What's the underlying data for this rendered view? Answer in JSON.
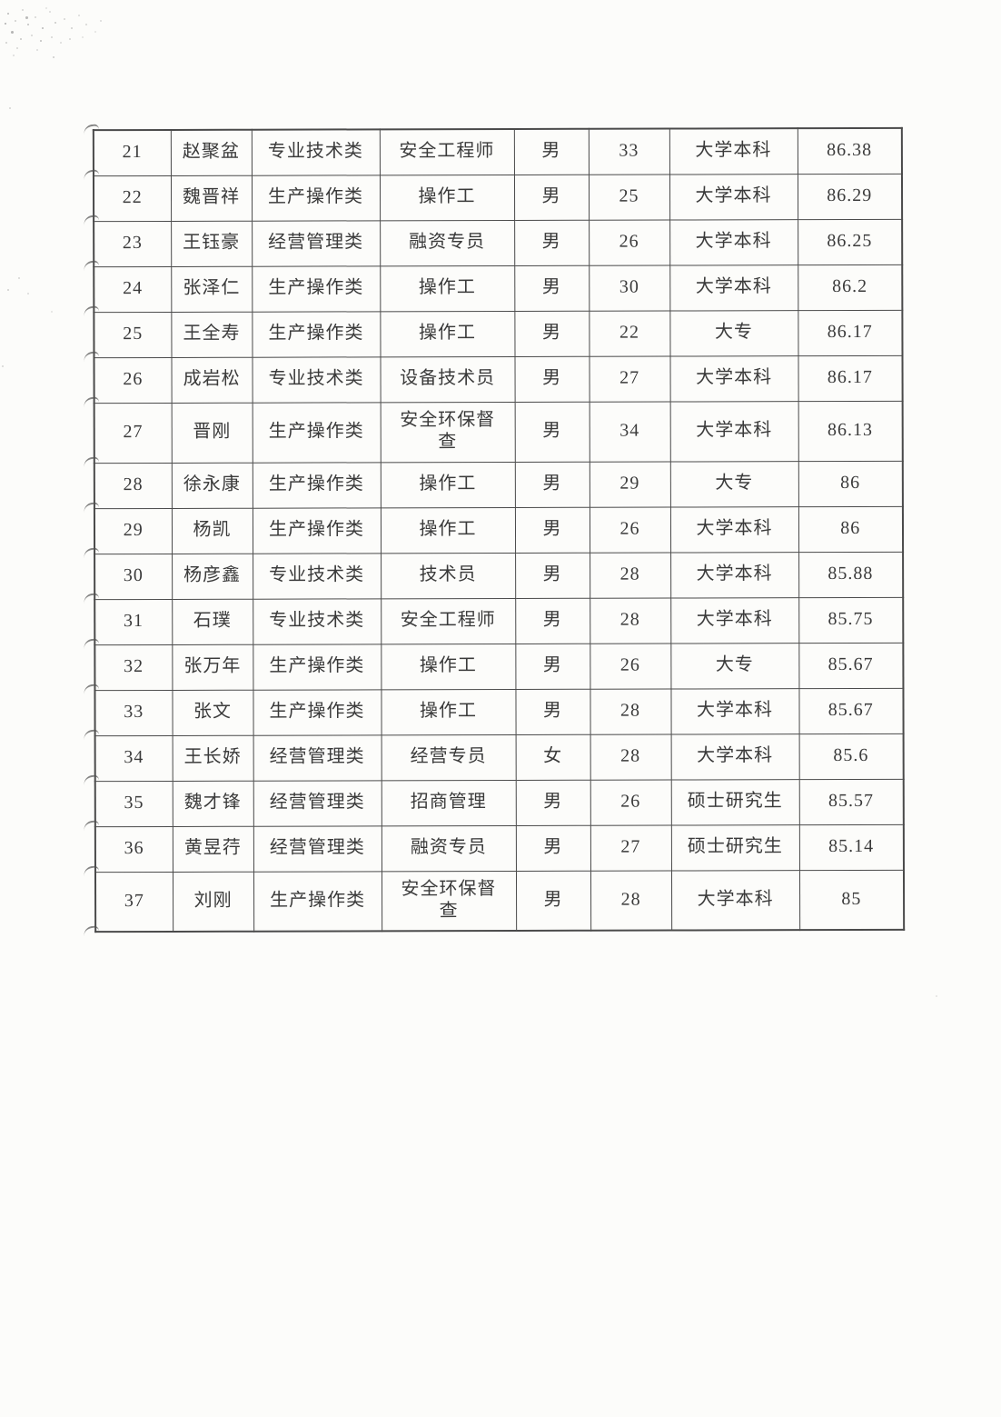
{
  "colors": {
    "paper": "#fcfcfa",
    "ink": "#3a3a3a",
    "border": "#4a4a4a"
  },
  "table": {
    "rows": [
      {
        "no": "21",
        "name": "赵聚盆",
        "category": "专业技术类",
        "position": "安全工程师",
        "gender": "男",
        "age": "33",
        "education": "大学本科",
        "score": "86.38"
      },
      {
        "no": "22",
        "name": "魏晋祥",
        "category": "生产操作类",
        "position": "操作工",
        "gender": "男",
        "age": "25",
        "education": "大学本科",
        "score": "86.29"
      },
      {
        "no": "23",
        "name": "王钰豪",
        "category": "经营管理类",
        "position": "融资专员",
        "gender": "男",
        "age": "26",
        "education": "大学本科",
        "score": "86.25"
      },
      {
        "no": "24",
        "name": "张泽仁",
        "category": "生产操作类",
        "position": "操作工",
        "gender": "男",
        "age": "30",
        "education": "大学本科",
        "score": "86.2"
      },
      {
        "no": "25",
        "name": "王全寿",
        "category": "生产操作类",
        "position": "操作工",
        "gender": "男",
        "age": "22",
        "education": "大专",
        "score": "86.17"
      },
      {
        "no": "26",
        "name": "成岩松",
        "category": "专业技术类",
        "position": "设备技术员",
        "gender": "男",
        "age": "27",
        "education": "大学本科",
        "score": "86.17"
      },
      {
        "no": "27",
        "name": "晋刚",
        "category": "生产操作类",
        "position": "安全环保督查",
        "gender": "男",
        "age": "34",
        "education": "大学本科",
        "score": "86.13"
      },
      {
        "no": "28",
        "name": "徐永康",
        "category": "生产操作类",
        "position": "操作工",
        "gender": "男",
        "age": "29",
        "education": "大专",
        "score": "86"
      },
      {
        "no": "29",
        "name": "杨凯",
        "category": "生产操作类",
        "position": "操作工",
        "gender": "男",
        "age": "26",
        "education": "大学本科",
        "score": "86"
      },
      {
        "no": "30",
        "name": "杨彦鑫",
        "category": "专业技术类",
        "position": "技术员",
        "gender": "男",
        "age": "28",
        "education": "大学本科",
        "score": "85.88"
      },
      {
        "no": "31",
        "name": "石璞",
        "category": "专业技术类",
        "position": "安全工程师",
        "gender": "男",
        "age": "28",
        "education": "大学本科",
        "score": "85.75"
      },
      {
        "no": "32",
        "name": "张万年",
        "category": "生产操作类",
        "position": "操作工",
        "gender": "男",
        "age": "26",
        "education": "大专",
        "score": "85.67"
      },
      {
        "no": "33",
        "name": "张文",
        "category": "生产操作类",
        "position": "操作工",
        "gender": "男",
        "age": "28",
        "education": "大学本科",
        "score": "85.67"
      },
      {
        "no": "34",
        "name": "王长娇",
        "category": "经营管理类",
        "position": "经营专员",
        "gender": "女",
        "age": "28",
        "education": "大学本科",
        "score": "85.6"
      },
      {
        "no": "35",
        "name": "魏才锋",
        "category": "经营管理类",
        "position": "招商管理",
        "gender": "男",
        "age": "26",
        "education": "硕士研究生",
        "score": "85.57"
      },
      {
        "no": "36",
        "name": "黄昱荇",
        "category": "经营管理类",
        "position": "融资专员",
        "gender": "男",
        "age": "27",
        "education": "硕士研究生",
        "score": "85.14"
      },
      {
        "no": "37",
        "name": "刘刚",
        "category": "生产操作类",
        "position": "安全环保督查",
        "gender": "男",
        "age": "28",
        "education": "大学本科",
        "score": "85"
      }
    ]
  }
}
